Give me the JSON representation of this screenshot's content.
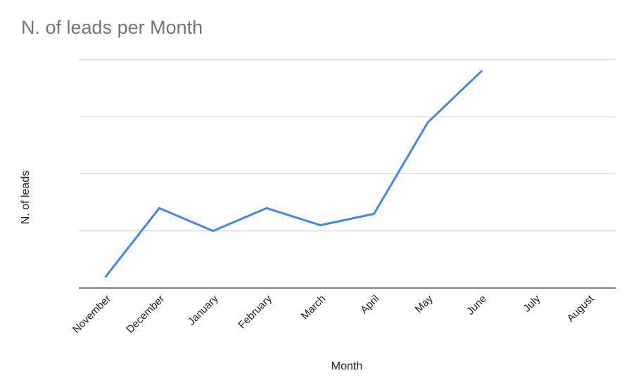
{
  "chart_data": {
    "type": "line",
    "title": "N. of leads per Month",
    "xlabel": "Month",
    "ylabel": "N. of leads",
    "categories": [
      "November",
      "December",
      "January",
      "February",
      "March",
      "April",
      "May",
      "June",
      "July",
      "August"
    ],
    "series": [
      {
        "values": [
          0.2,
          1.4,
          1.0,
          1.4,
          1.1,
          1.3,
          2.9,
          3.8,
          null,
          null
        ]
      }
    ],
    "ylim": [
      0,
      4
    ],
    "grid": true,
    "colors": {
      "line": "#4285f4"
    }
  }
}
